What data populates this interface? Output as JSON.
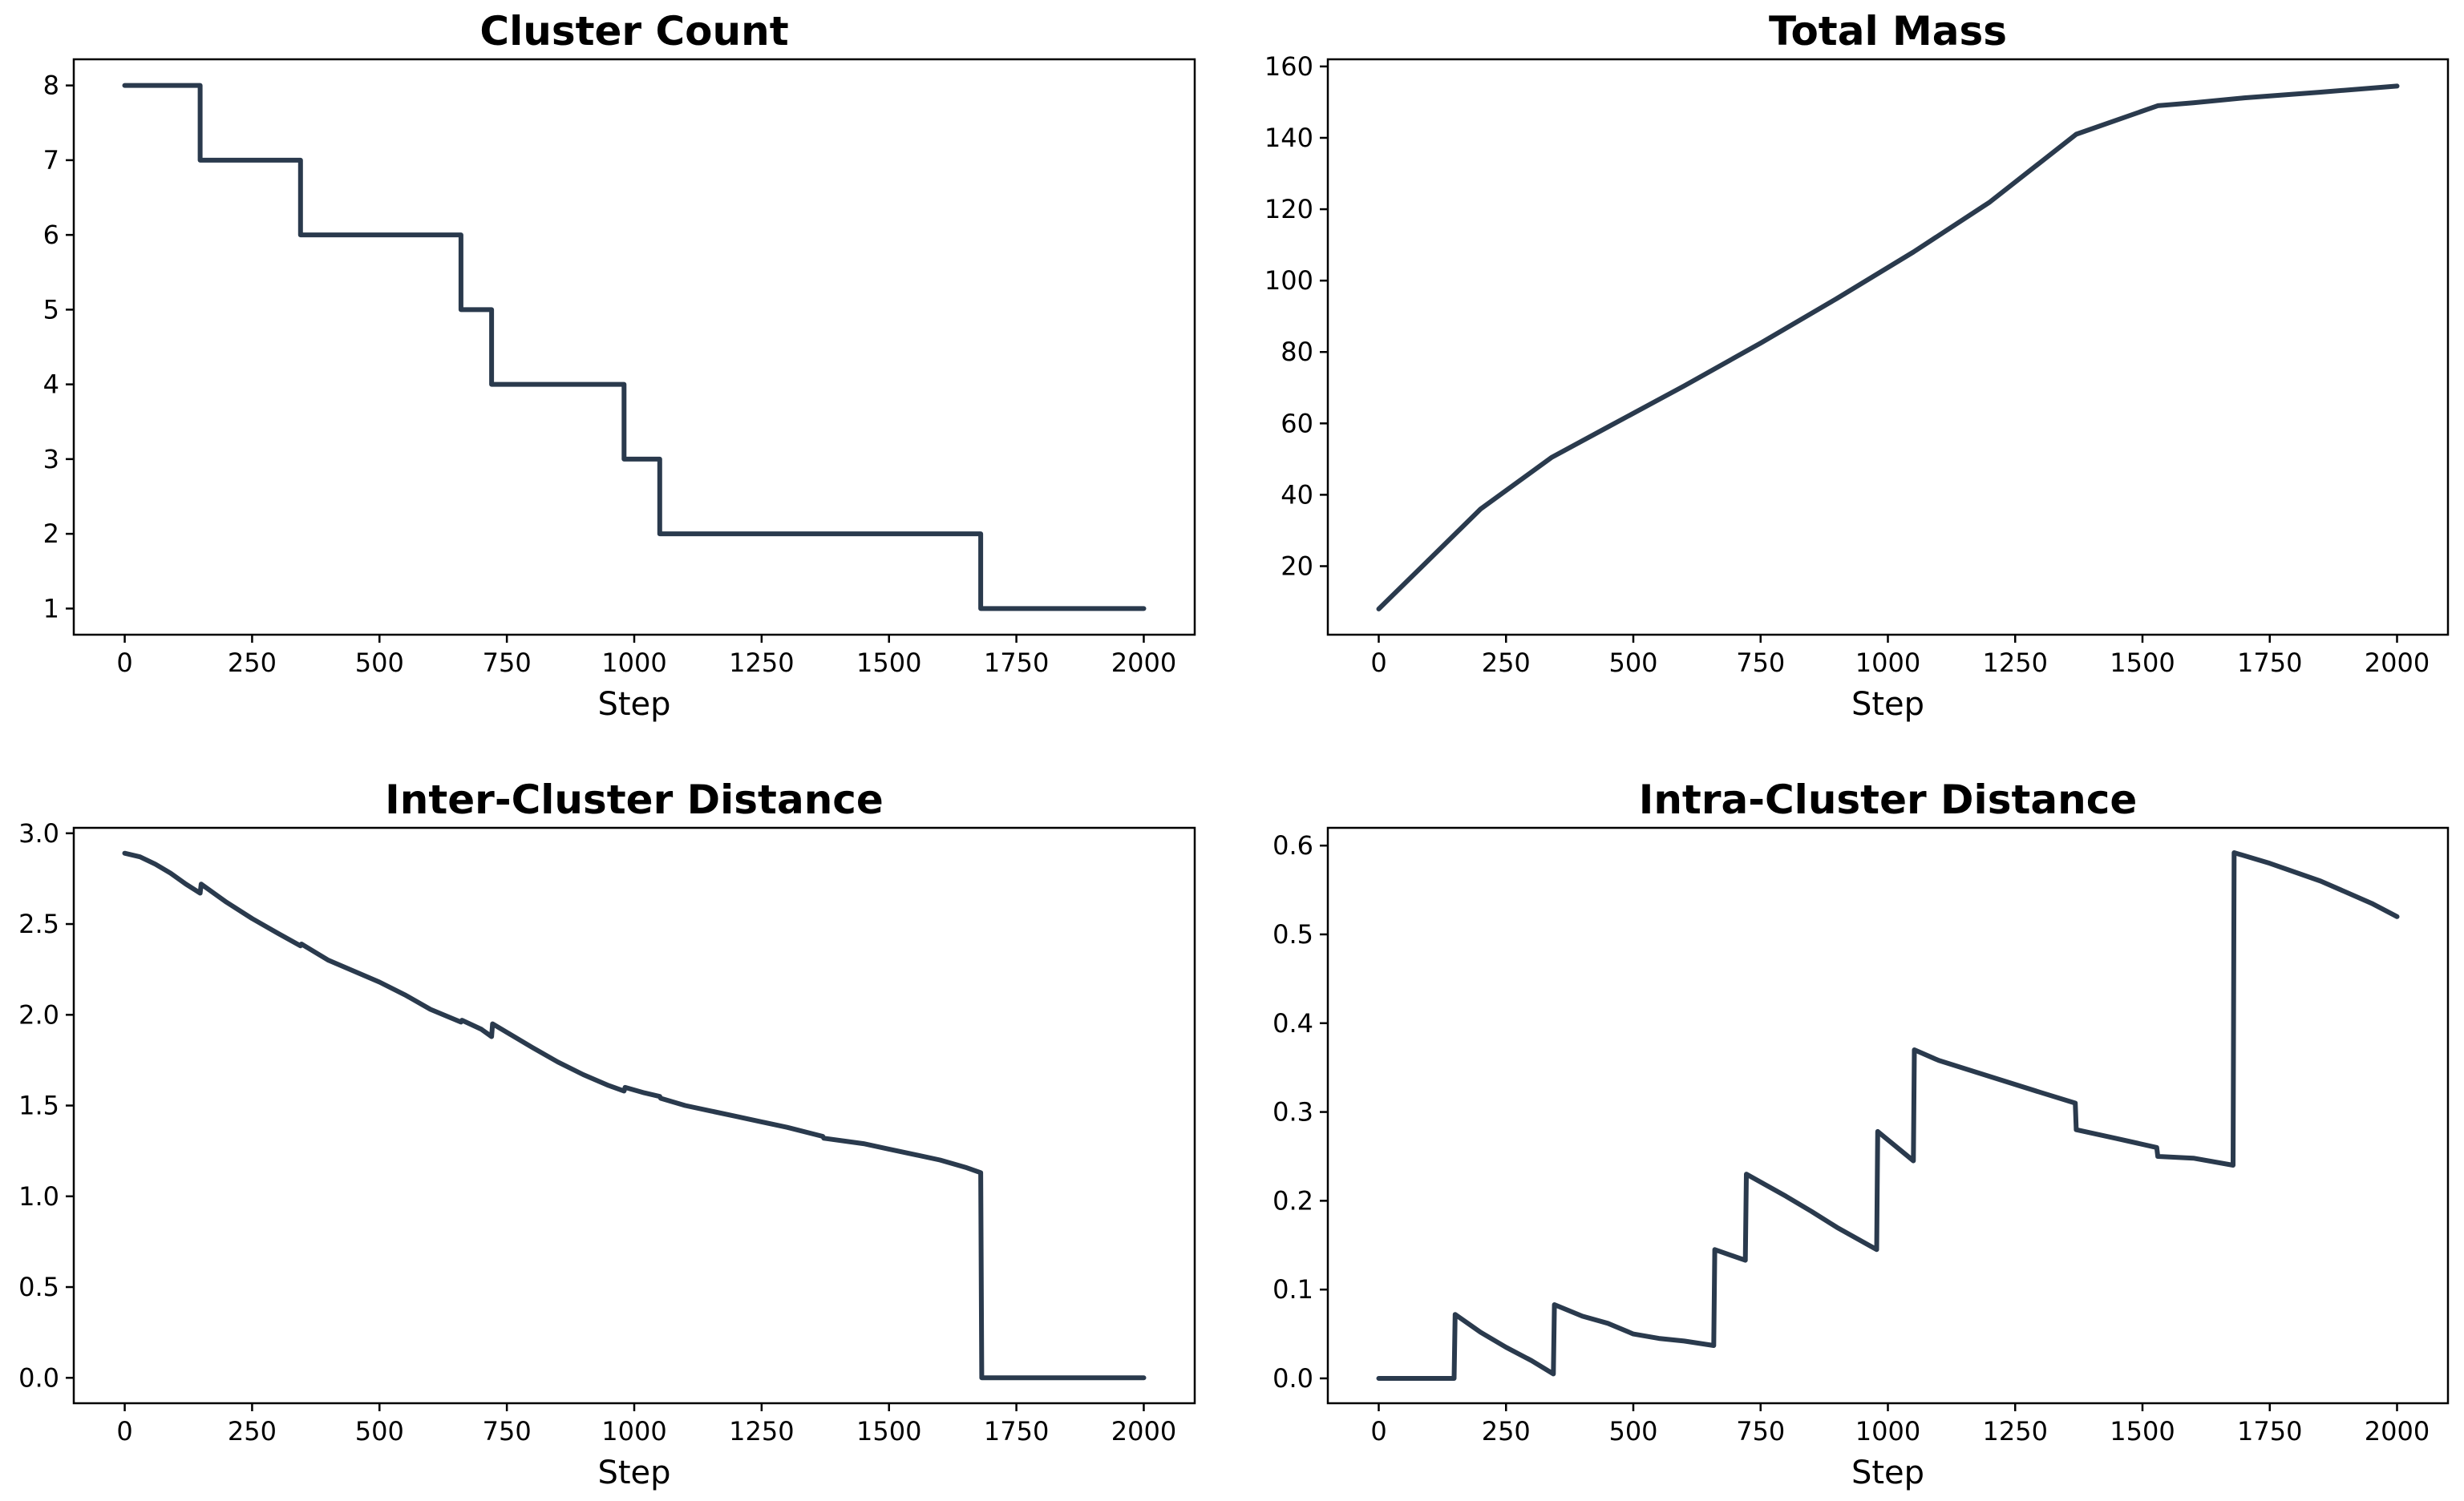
{
  "colors": {
    "line": "#2a3a4d",
    "background": "#ffffff"
  },
  "chart_data": [
    {
      "type": "line",
      "title": "Cluster Count",
      "xlabel": "Step",
      "ylabel": "",
      "xlim": [
        -100,
        2100
      ],
      "ylim": [
        0.65,
        8.35
      ],
      "xticks": [
        0,
        250,
        500,
        750,
        1000,
        1250,
        1500,
        1750,
        2000
      ],
      "yticks": [
        1,
        2,
        3,
        4,
        5,
        6,
        7,
        8
      ],
      "ytick_decimals": 0,
      "grid": false,
      "series": [
        {
          "x": [
            0,
            148,
            148,
            345,
            345,
            660,
            660,
            720,
            720,
            980,
            980,
            1050,
            1050,
            1680,
            1680,
            2000
          ],
          "y": [
            8,
            8,
            7,
            7,
            6,
            6,
            5,
            5,
            4,
            4,
            3,
            3,
            2,
            2,
            1,
            1
          ]
        }
      ]
    },
    {
      "type": "line",
      "title": "Total Mass",
      "xlabel": "Step",
      "ylabel": "",
      "xlim": [
        -100,
        2100
      ],
      "ylim": [
        0.8,
        162
      ],
      "xticks": [
        0,
        250,
        500,
        750,
        1000,
        1250,
        1500,
        1750,
        2000
      ],
      "yticks": [
        20,
        40,
        60,
        80,
        100,
        120,
        140,
        160
      ],
      "ytick_decimals": 0,
      "grid": false,
      "series": [
        {
          "x": [
            0,
            100,
            200,
            340,
            450,
            600,
            750,
            900,
            1050,
            1200,
            1370,
            1450,
            1530,
            1600,
            1700,
            1850,
            2000
          ],
          "y": [
            8,
            22,
            36,
            50.5,
            59,
            70.5,
            82.5,
            95,
            108,
            122,
            141,
            145,
            149,
            149.8,
            151.2,
            152.8,
            154.5
          ]
        }
      ]
    },
    {
      "type": "line",
      "title": "Inter-Cluster Distance",
      "xlabel": "Step",
      "ylabel": "",
      "xlim": [
        -100,
        2100
      ],
      "ylim": [
        -0.14,
        3.03
      ],
      "xticks": [
        0,
        250,
        500,
        750,
        1000,
        1250,
        1500,
        1750,
        2000
      ],
      "yticks": [
        0.0,
        0.5,
        1.0,
        1.5,
        2.0,
        2.5,
        3.0
      ],
      "ytick_decimals": 1,
      "grid": false,
      "series": [
        {
          "x": [
            0,
            30,
            60,
            90,
            120,
            148,
            150,
            200,
            250,
            300,
            345,
            347,
            400,
            450,
            500,
            550,
            600,
            660,
            662,
            700,
            720,
            722,
            800,
            850,
            900,
            950,
            980,
            982,
            1020,
            1050,
            1052,
            1100,
            1150,
            1200,
            1250,
            1300,
            1370,
            1372,
            1450,
            1500,
            1550,
            1600,
            1650,
            1680,
            1682,
            2000
          ],
          "y": [
            2.89,
            2.87,
            2.83,
            2.78,
            2.72,
            2.67,
            2.72,
            2.62,
            2.53,
            2.45,
            2.38,
            2.39,
            2.3,
            2.24,
            2.18,
            2.11,
            2.03,
            1.96,
            1.97,
            1.92,
            1.88,
            1.95,
            1.82,
            1.74,
            1.67,
            1.61,
            1.58,
            1.6,
            1.57,
            1.55,
            1.54,
            1.5,
            1.47,
            1.44,
            1.41,
            1.38,
            1.33,
            1.32,
            1.29,
            1.26,
            1.23,
            1.2,
            1.16,
            1.13,
            0.0,
            0.0
          ]
        }
      ]
    },
    {
      "type": "line",
      "title": "Intra-Cluster Distance",
      "xlabel": "Step",
      "ylabel": "",
      "xlim": [
        -100,
        2100
      ],
      "ylim": [
        -0.028,
        0.62
      ],
      "xticks": [
        0,
        250,
        500,
        750,
        1000,
        1250,
        1500,
        1750,
        2000
      ],
      "yticks": [
        0.0,
        0.1,
        0.2,
        0.3,
        0.4,
        0.5,
        0.6
      ],
      "ytick_decimals": 1,
      "grid": false,
      "series": [
        {
          "x": [
            0,
            148,
            150,
            200,
            250,
            300,
            343,
            345,
            400,
            450,
            500,
            550,
            600,
            658,
            660,
            720,
            722,
            800,
            850,
            900,
            978,
            980,
            1050,
            1052,
            1100,
            1200,
            1300,
            1368,
            1370,
            1450,
            1528,
            1530,
            1600,
            1678,
            1680,
            1750,
            1850,
            1950,
            2000
          ],
          "y": [
            0.0,
            0.0,
            0.072,
            0.052,
            0.035,
            0.02,
            0.005,
            0.083,
            0.07,
            0.062,
            0.05,
            0.045,
            0.042,
            0.037,
            0.145,
            0.133,
            0.23,
            0.205,
            0.188,
            0.17,
            0.145,
            0.278,
            0.245,
            0.37,
            0.358,
            0.34,
            0.322,
            0.31,
            0.28,
            0.27,
            0.26,
            0.25,
            0.248,
            0.24,
            0.592,
            0.58,
            0.56,
            0.535,
            0.52
          ]
        }
      ]
    }
  ]
}
